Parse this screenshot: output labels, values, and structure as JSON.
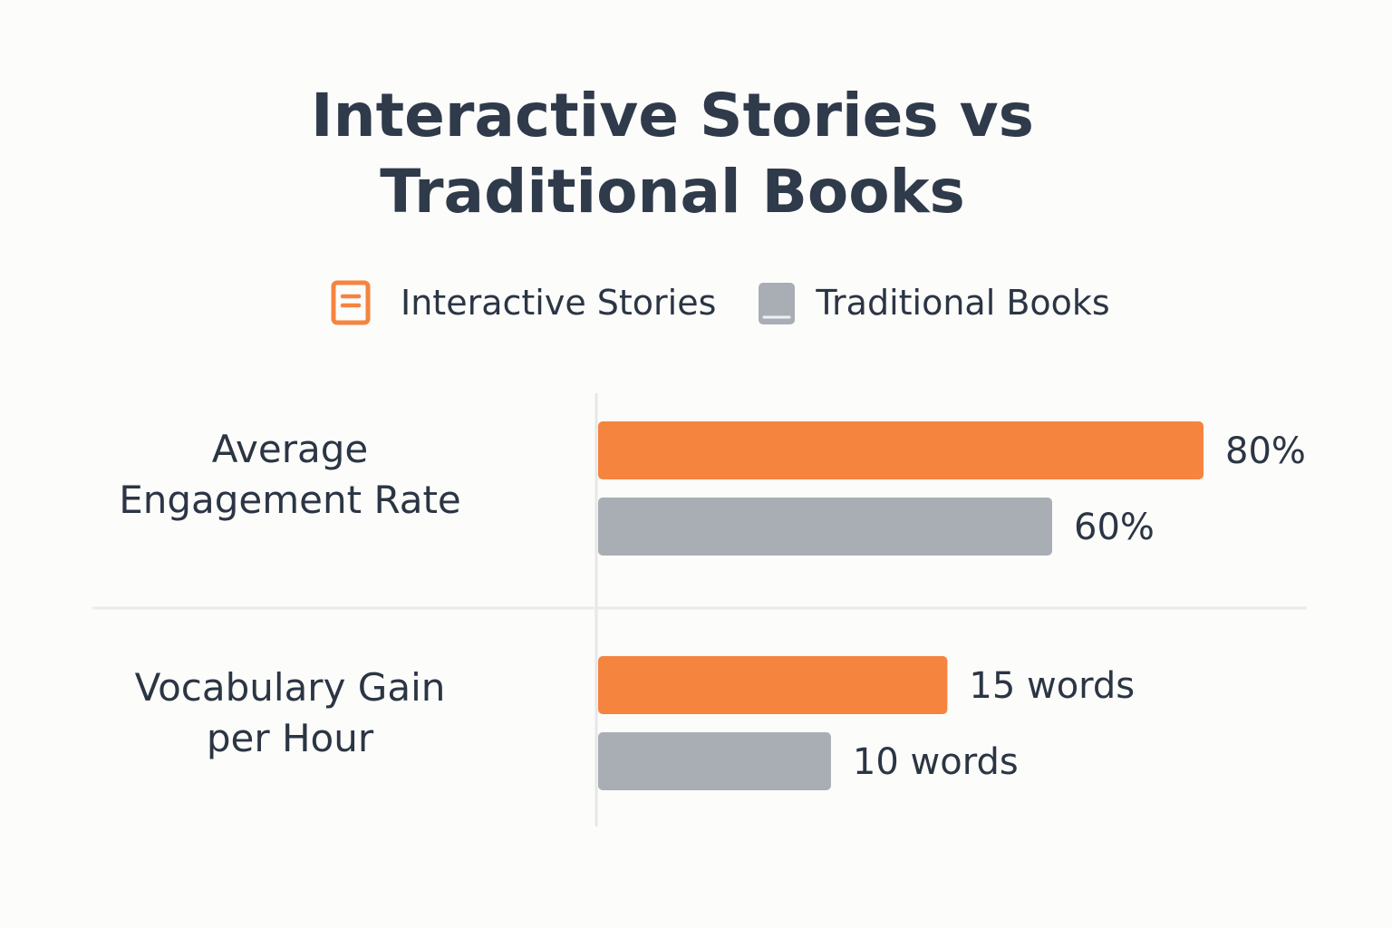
{
  "chart_data": {
    "type": "bar",
    "orientation": "horizontal",
    "title": "Interactive Stories vs Traditional Books",
    "categories": [
      "Average Engagement Rate",
      "Vocabulary Gain per Hour"
    ],
    "category_lines": [
      [
        "Average",
        "Engagement Rate"
      ],
      [
        "Vocabulary Gain",
        "per Hour"
      ]
    ],
    "series": [
      {
        "name": "Interactive Stories",
        "color": "#f5843f",
        "icon": "orange-book-icon",
        "values": [
          80,
          15
        ],
        "labels": [
          "80%",
          "15 words"
        ]
      },
      {
        "name": "Traditional Books",
        "color": "#a9aeb4",
        "icon": "gray-book-icon",
        "values": [
          60,
          10
        ],
        "labels": [
          "60%",
          "10 words"
        ]
      }
    ],
    "units": [
      "%",
      "words"
    ],
    "category_max": [
      80,
      26
    ],
    "legend_position": "top-center",
    "grid": false
  }
}
